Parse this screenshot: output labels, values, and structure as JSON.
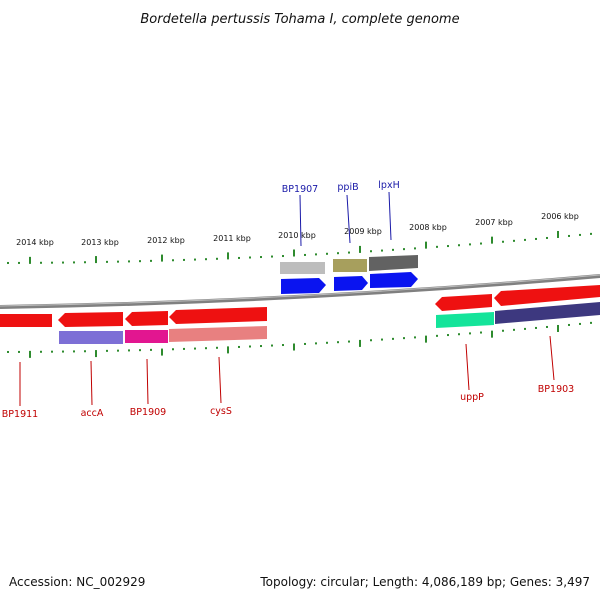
{
  "title": "Bordetella pertussis Tohama I, complete genome",
  "footer": {
    "accession": "Accession: NC_002929",
    "summary": "Topology: circular; Length: 4,086,189 bp; Genes: 3,497"
  },
  "scale_labels": [
    "2014 kbp",
    "2013 kbp",
    "2012 kbp",
    "2011 kbp",
    "2010 kbp",
    "2009 kbp",
    "2008 kbp",
    "2007 kbp",
    "2006 kbp"
  ],
  "labels_top": [
    "BP1907",
    "ppiB",
    "lpxH"
  ],
  "labels_bottom": [
    "BP1911",
    "accA",
    "BP1909",
    "cysS",
    "uppP",
    "BP1903"
  ],
  "colors": {
    "backbone": "#808080",
    "tick": "#2e8b2e",
    "gene_red": "#ee1111",
    "gene_blue": "#0a14f0",
    "label_red": "#c00000",
    "label_blue": "#1a1aa8",
    "cog_gray_light": "#bdbdbd",
    "cog_olive": "#a79f5d",
    "cog_gray_dark": "#626262",
    "cog_lavender": "#7d6fd6",
    "cog_magenta": "#e21690",
    "cog_salmon": "#e88080",
    "cog_green": "#14e49a",
    "cog_navy": "#3d387f"
  }
}
